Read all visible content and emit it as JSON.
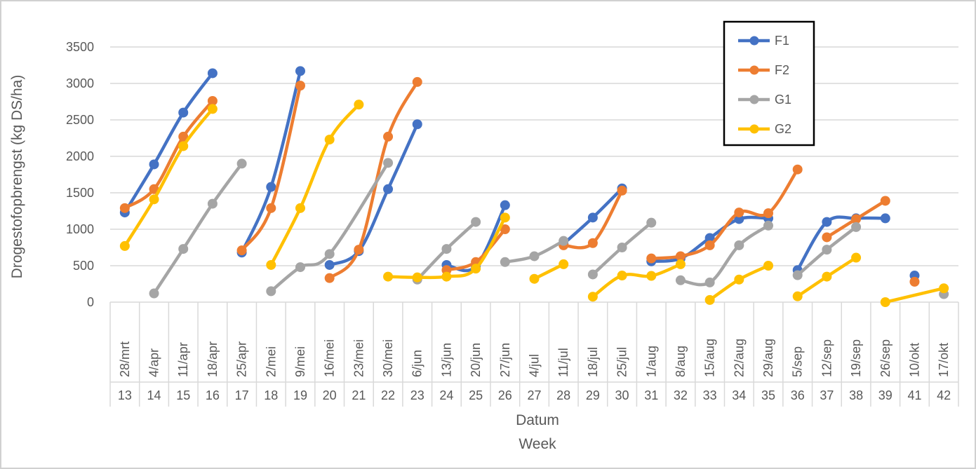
{
  "chart_data": {
    "type": "line",
    "title": "",
    "ylabel": "Drogestofopbrengst (kg DS/ha)",
    "xlabel": [
      "Datum",
      "Week"
    ],
    "ylim": [
      0,
      3500
    ],
    "yticks": [
      0,
      500,
      1000,
      1500,
      2000,
      2500,
      3000,
      3500
    ],
    "grid": true,
    "legend_position": "top-right",
    "categories": [
      {
        "date": "28/mrt",
        "week": "13"
      },
      {
        "date": "4/apr",
        "week": "14"
      },
      {
        "date": "11/apr",
        "week": "15"
      },
      {
        "date": "18/apr",
        "week": "16"
      },
      {
        "date": "25/apr",
        "week": "17"
      },
      {
        "date": "2/mei",
        "week": "18"
      },
      {
        "date": "9/mei",
        "week": "19"
      },
      {
        "date": "16/mei",
        "week": "20"
      },
      {
        "date": "23/mei",
        "week": "21"
      },
      {
        "date": "30/mei",
        "week": "22"
      },
      {
        "date": "6/jun",
        "week": "23"
      },
      {
        "date": "13/jun",
        "week": "24"
      },
      {
        "date": "20/jun",
        "week": "25"
      },
      {
        "date": "27/jun",
        "week": "26"
      },
      {
        "date": "4/jul",
        "week": "27"
      },
      {
        "date": "11/jul",
        "week": "28"
      },
      {
        "date": "18/jul",
        "week": "29"
      },
      {
        "date": "25/jul",
        "week": "30"
      },
      {
        "date": "1/aug",
        "week": "31"
      },
      {
        "date": "8/aug",
        "week": "32"
      },
      {
        "date": "15/aug",
        "week": "33"
      },
      {
        "date": "22/aug",
        "week": "34"
      },
      {
        "date": "29/aug",
        "week": "35"
      },
      {
        "date": "5/sep",
        "week": "36"
      },
      {
        "date": "12/sep",
        "week": "37"
      },
      {
        "date": "19/sep",
        "week": "38"
      },
      {
        "date": "26/sep",
        "week": "39"
      },
      {
        "date": "10/okt",
        "week": "41"
      },
      {
        "date": "17/okt",
        "week": "42"
      }
    ],
    "series": [
      {
        "name": "F1",
        "color": "#4472C4",
        "segments": [
          [
            [
              "13",
              1230
            ],
            [
              "14",
              1890
            ],
            [
              "15",
              2600
            ],
            [
              "16",
              3140
            ]
          ],
          [
            [
              "17",
              680
            ],
            [
              "18",
              1580
            ],
            [
              "19",
              3170
            ]
          ],
          [
            [
              "20",
              510
            ],
            [
              "21",
              700
            ],
            [
              "22",
              1550
            ],
            [
              "23",
              2440
            ]
          ],
          [
            [
              "24",
              510
            ],
            [
              "25",
              490
            ],
            [
              "26",
              1330
            ]
          ],
          [
            [
              "28",
              800
            ],
            [
              "29",
              1160
            ],
            [
              "30",
              1560
            ]
          ],
          [
            [
              "31",
              560
            ],
            [
              "32",
              600
            ],
            [
              "33",
              880
            ],
            [
              "34",
              1140
            ],
            [
              "35",
              1150
            ]
          ],
          [
            [
              "36",
              440
            ],
            [
              "37",
              1100
            ],
            [
              "38",
              1150
            ],
            [
              "39",
              1150
            ]
          ],
          [
            [
              "41",
              365
            ]
          ]
        ]
      },
      {
        "name": "F2",
        "color": "#ED7D31",
        "segments": [
          [
            [
              "13",
              1290
            ],
            [
              "14",
              1550
            ],
            [
              "15",
              2270
            ],
            [
              "16",
              2760
            ]
          ],
          [
            [
              "17",
              710
            ],
            [
              "18",
              1290
            ],
            [
              "19",
              2970
            ]
          ],
          [
            [
              "20",
              330
            ],
            [
              "21",
              720
            ],
            [
              "22",
              2270
            ],
            [
              "23",
              3020
            ]
          ],
          [
            [
              "24",
              440
            ],
            [
              "25",
              550
            ],
            [
              "26",
              1000
            ]
          ],
          [
            [
              "28",
              780
            ],
            [
              "29",
              810
            ],
            [
              "30",
              1530
            ]
          ],
          [
            [
              "31",
              600
            ],
            [
              "32",
              630
            ],
            [
              "33",
              780
            ],
            [
              "34",
              1230
            ],
            [
              "35",
              1220
            ],
            [
              "36",
              1820
            ]
          ],
          [
            [
              "37",
              890
            ],
            [
              "38",
              1140
            ],
            [
              "39",
              1390
            ]
          ],
          [
            [
              "41",
              280
            ]
          ]
        ]
      },
      {
        "name": "G1",
        "color": "#A5A5A5",
        "segments": [
          [
            [
              "14",
              120
            ],
            [
              "15",
              730
            ],
            [
              "16",
              1350
            ],
            [
              "17",
              1900
            ]
          ],
          [
            [
              "18",
              150
            ],
            [
              "19",
              480
            ],
            [
              "20",
              660
            ],
            [
              "22",
              1910
            ]
          ],
          [
            [
              "23",
              310
            ],
            [
              "24",
              730
            ],
            [
              "25",
              1100
            ]
          ],
          [
            [
              "26",
              550
            ],
            [
              "27",
              630
            ],
            [
              "28",
              840
            ]
          ],
          [
            [
              "29",
              380
            ],
            [
              "30",
              750
            ],
            [
              "31",
              1090
            ]
          ],
          [
            [
              "32",
              300
            ],
            [
              "33",
              270
            ],
            [
              "34",
              780
            ],
            [
              "35",
              1050
            ]
          ],
          [
            [
              "36",
              370
            ],
            [
              "37",
              720
            ],
            [
              "38",
              1030
            ]
          ],
          [
            [
              "42",
              110
            ]
          ]
        ]
      },
      {
        "name": "G2",
        "color": "#FFC000",
        "segments": [
          [
            [
              "13",
              770
            ],
            [
              "14",
              1410
            ],
            [
              "15",
              2140
            ],
            [
              "16",
              2650
            ]
          ],
          [
            [
              "18",
              510
            ],
            [
              "19",
              1290
            ],
            [
              "20",
              2230
            ],
            [
              "21",
              2710
            ]
          ],
          [
            [
              "22",
              350
            ],
            [
              "23",
              340
            ],
            [
              "24",
              350
            ],
            [
              "25",
              460
            ],
            [
              "26",
              1160
            ]
          ],
          [
            [
              "27",
              320
            ],
            [
              "28",
              520
            ]
          ],
          [
            [
              "29",
              75
            ],
            [
              "30",
              365
            ],
            [
              "31",
              360
            ],
            [
              "32",
              520
            ]
          ],
          [
            [
              "33",
              30
            ],
            [
              "34",
              310
            ],
            [
              "35",
              500
            ]
          ],
          [
            [
              "36",
              80
            ],
            [
              "37",
              350
            ],
            [
              "38",
              610
            ]
          ],
          [
            [
              "39",
              0
            ],
            [
              "42",
              190
            ]
          ]
        ]
      }
    ]
  }
}
